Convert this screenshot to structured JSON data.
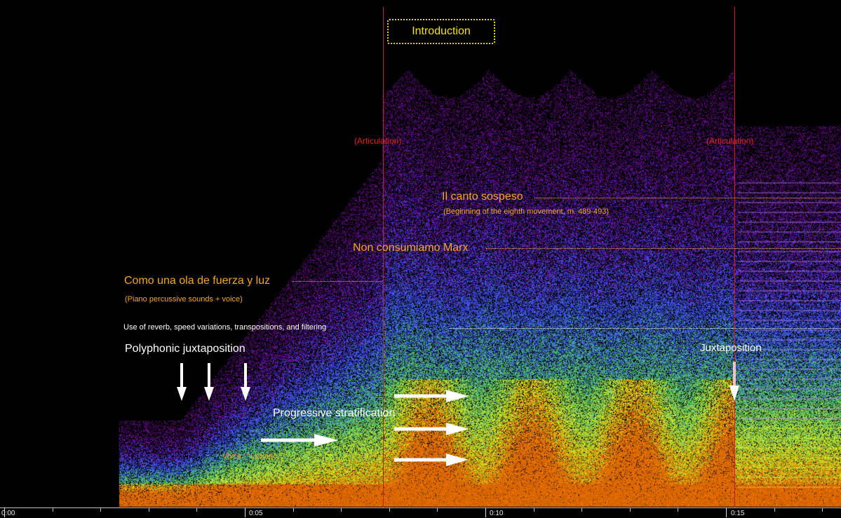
{
  "colors": {
    "background": "#000000",
    "spectrogram_low": "#7a1aa8",
    "spectrogram_mid": "#3a4bff",
    "spectrogram_high": "#c8ff2a",
    "spectrogram_peak": "#ff6a00",
    "annotation_orange": "#f5a623",
    "articulation_red": "#e8201c",
    "intro_yellow": "#f3e600"
  },
  "section_title": "Introduction",
  "articulations": [
    "(Articulation)",
    "(Articulation)"
  ],
  "annotations": {
    "canto_title": "Il canto sospeso",
    "canto_note": "(Beginning of the eighth movement, m. 489-493)",
    "marx": "Non consumiamo Marx",
    "ola_title": "Como una ola de fuerza y luz",
    "ola_note": "(Piano percussive sounds + voice)",
    "reverb": "Use of reverb, speed variations, transpositions, and filtering",
    "polyphonic": "Polyphonic juxtaposition",
    "juxtaposition": "Juxtaposition",
    "stratification": "Progressive stratification",
    "voice": "Voice : \"Luciano...\""
  },
  "time_axis": {
    "labels": [
      "0:00",
      "0:05",
      "0:10",
      "0:15"
    ]
  }
}
